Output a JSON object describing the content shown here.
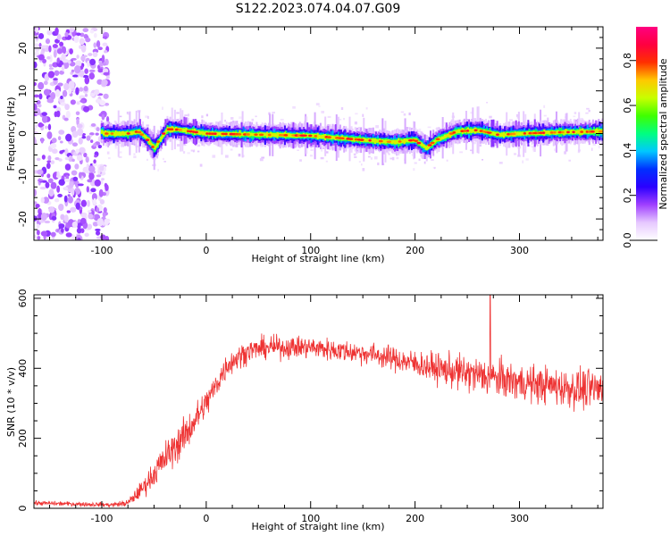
{
  "title": "S122.2023.074.04.07.G09",
  "chart_data": [
    {
      "type": "heatmap",
      "xlabel": "Height of straight line (km)",
      "ylabel": "Frequency (Hz)",
      "xlim": [
        -165,
        380
      ],
      "ylim": [
        -25,
        25
      ],
      "x_ticks": [
        -100,
        0,
        100,
        200,
        300
      ],
      "y_ticks": [
        -20,
        -10,
        0,
        10,
        20
      ],
      "colorbar": {
        "label": "Normalized spectral amplitude",
        "range": [
          0,
          0.95
        ],
        "ticks": [
          0.0,
          0.2,
          0.4,
          0.6,
          0.8
        ],
        "colormap": [
          "#ffffff",
          "#e6c8ff",
          "#a040ff",
          "#2b00ff",
          "#0030ff",
          "#00c8ff",
          "#00ff80",
          "#40ff00",
          "#c8ff00",
          "#ffc800",
          "#ff3000",
          "#ff0040",
          "#ff0080"
        ]
      },
      "ridge_center_freq": [
        {
          "x": -100,
          "y": 0.0
        },
        {
          "x": -75,
          "y": 0.0
        },
        {
          "x": -65,
          "y": 0.5
        },
        {
          "x": -58,
          "y": -1.0
        },
        {
          "x": -50,
          "y": -3.5
        },
        {
          "x": -45,
          "y": -1.5
        },
        {
          "x": -38,
          "y": 1.0
        },
        {
          "x": -30,
          "y": 1.0
        },
        {
          "x": 0,
          "y": 0.0
        },
        {
          "x": 100,
          "y": -0.5
        },
        {
          "x": 150,
          "y": -1.5
        },
        {
          "x": 180,
          "y": -2.0
        },
        {
          "x": 200,
          "y": -1.5
        },
        {
          "x": 210,
          "y": -3.5
        },
        {
          "x": 220,
          "y": -1.5
        },
        {
          "x": 240,
          "y": 0.5
        },
        {
          "x": 260,
          "y": 0.8
        },
        {
          "x": 280,
          "y": -0.3
        },
        {
          "x": 300,
          "y": 0.0
        },
        {
          "x": 340,
          "y": 0.3
        },
        {
          "x": 380,
          "y": 0.5
        }
      ],
      "noise_region_x": [
        -165,
        -100
      ]
    },
    {
      "type": "line",
      "xlabel": "Height of straight line (km)",
      "ylabel": "SNR (10 * v/v)",
      "xlim": [
        -165,
        380
      ],
      "ylim": [
        0,
        610
      ],
      "x_ticks": [
        -100,
        0,
        100,
        200,
        300
      ],
      "y_ticks": [
        0,
        200,
        400,
        600
      ],
      "color": "#ee3333",
      "series": [
        {
          "x": [
            -165,
            -120,
            -90,
            -75,
            -60,
            -40,
            -20,
            0,
            20,
            40,
            60,
            80,
            100,
            130,
            160,
            190,
            220,
            250,
            270,
            300,
            330,
            360,
            380
          ],
          "mean": [
            15,
            12,
            10,
            15,
            60,
            140,
            210,
            300,
            410,
            450,
            460,
            460,
            460,
            450,
            440,
            420,
            400,
            385,
            375,
            360,
            350,
            340,
            340
          ],
          "spread": [
            6,
            6,
            6,
            10,
            25,
            45,
            50,
            40,
            35,
            30,
            30,
            30,
            30,
            30,
            30,
            35,
            40,
            50,
            50,
            50,
            50,
            55,
            55
          ]
        }
      ],
      "spike": {
        "x": 272,
        "y": 610
      }
    }
  ]
}
